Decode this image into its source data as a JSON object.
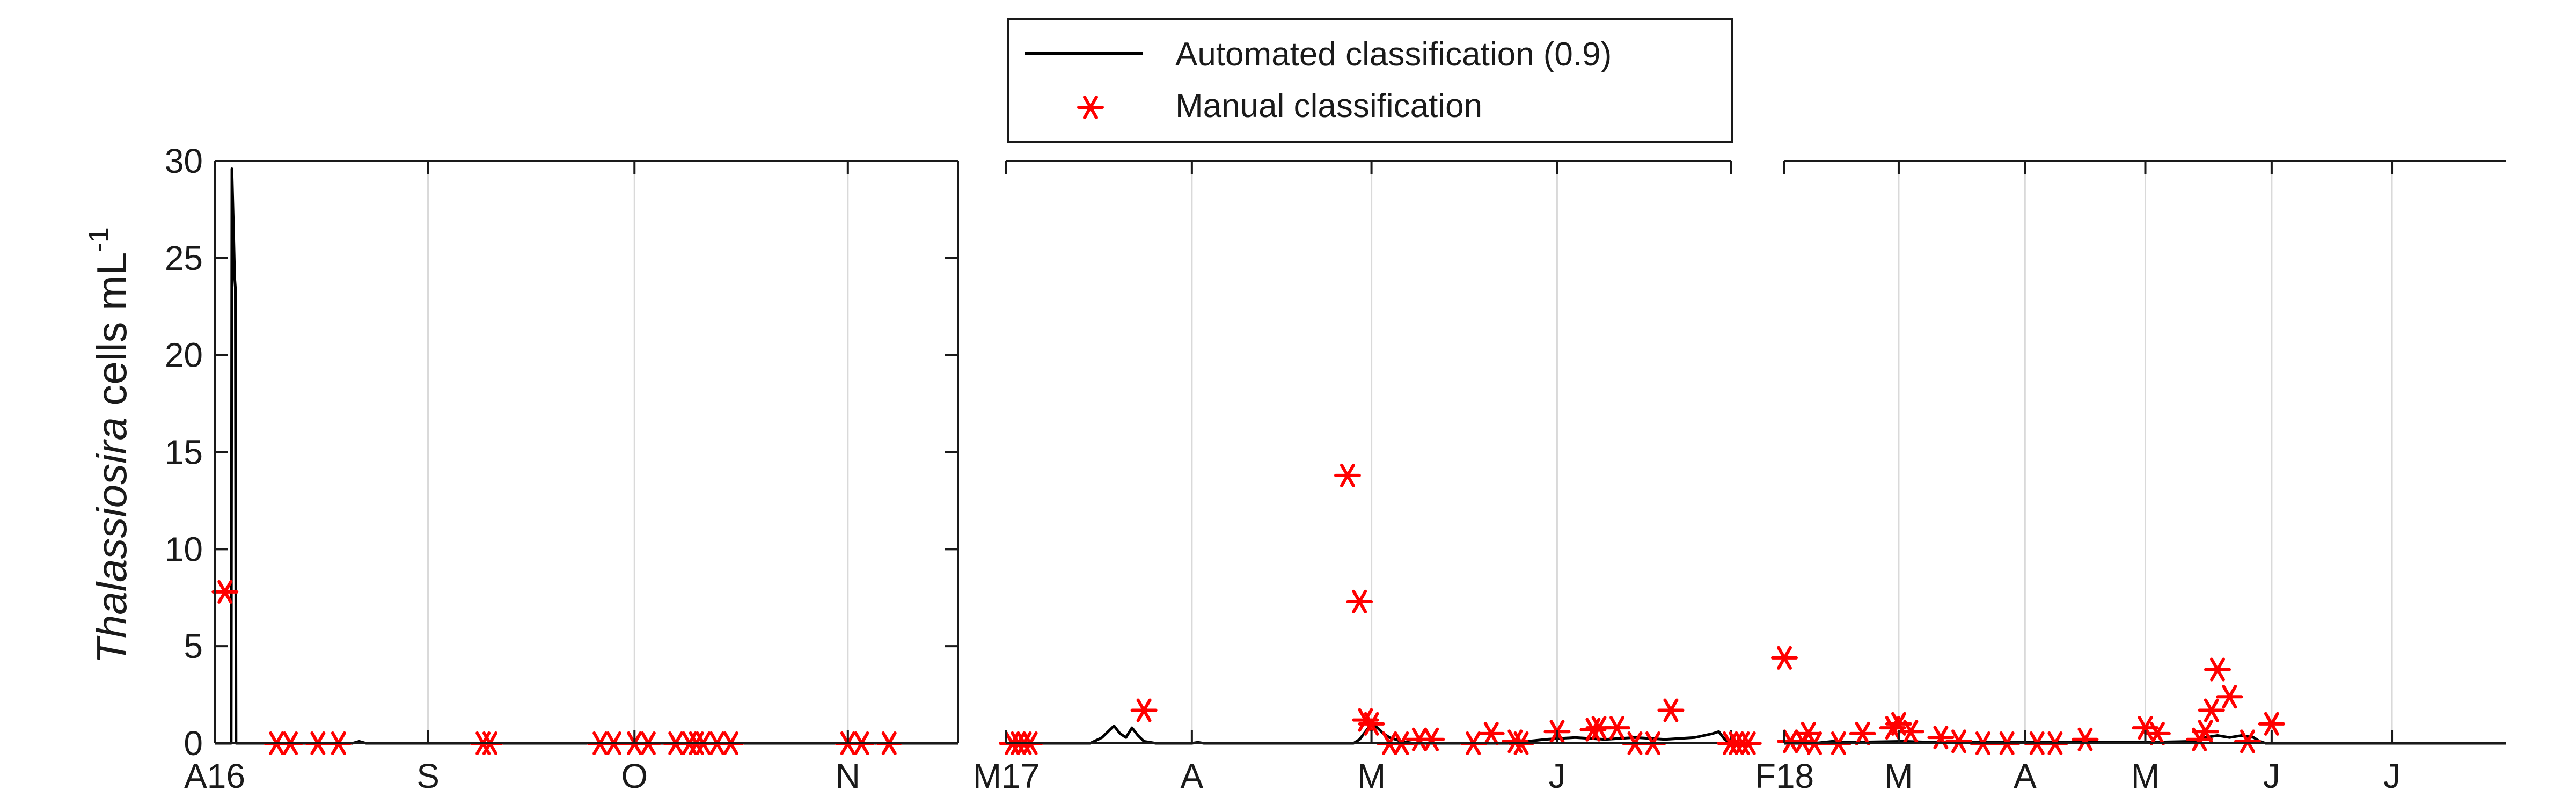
{
  "chart_data": {
    "type": "line",
    "ylabel": {
      "italic": "Thalassiosira",
      "rest": " cells mL",
      "sup": "-1"
    },
    "ylim": [
      0,
      30
    ],
    "yticks": [
      0,
      5,
      10,
      15,
      20,
      25,
      30
    ],
    "grid": true,
    "legend": {
      "position": "top-center",
      "entries": [
        {
          "label": "Automated classification (0.9)",
          "style": "line",
          "color": "#000000"
        },
        {
          "label": "Manual classification",
          "style": "asterisk",
          "color": "#ff0000"
        }
      ]
    },
    "colors": {
      "automated": "#000000",
      "manual": "#ff0000",
      "grid": "#d9d9d9"
    },
    "panels": [
      {
        "xlim": [
          0,
          108
        ],
        "xticks": [
          {
            "x": 0,
            "label": "A16"
          },
          {
            "x": 31,
            "label": "S"
          },
          {
            "x": 61,
            "label": "O"
          },
          {
            "x": 92,
            "label": "N"
          },
          {
            "x": 108,
            "label": ""
          }
        ],
        "automated": [
          [
            0,
            0
          ],
          [
            2.4,
            0
          ],
          [
            2.5,
            29.6
          ],
          [
            2.7,
            27
          ],
          [
            2.9,
            24
          ],
          [
            3.0,
            23.5
          ],
          [
            3.1,
            0
          ],
          [
            20,
            0
          ],
          [
            21,
            0.1
          ],
          [
            22,
            0
          ],
          [
            108,
            0
          ]
        ],
        "manual": [
          [
            1.5,
            7.8
          ],
          [
            9,
            0
          ],
          [
            11,
            0
          ],
          [
            15,
            0
          ],
          [
            18,
            0
          ],
          [
            39,
            0
          ],
          [
            40,
            0
          ],
          [
            56,
            0
          ],
          [
            58,
            0
          ],
          [
            61,
            0
          ],
          [
            63,
            0
          ],
          [
            67,
            0
          ],
          [
            69,
            0
          ],
          [
            70,
            0
          ],
          [
            71,
            0
          ],
          [
            73,
            0
          ],
          [
            75,
            0
          ],
          [
            92,
            0
          ],
          [
            94,
            0
          ],
          [
            98,
            0
          ]
        ]
      },
      {
        "xlim": [
          0,
          121
        ],
        "xticks": [
          {
            "x": 0,
            "label": "M17"
          },
          {
            "x": 31,
            "label": "A"
          },
          {
            "x": 61,
            "label": "M"
          },
          {
            "x": 92,
            "label": "J"
          },
          {
            "x": 121,
            "label": ""
          }
        ],
        "automated": [
          [
            0,
            0
          ],
          [
            14,
            0
          ],
          [
            15,
            0.15
          ],
          [
            16,
            0.3
          ],
          [
            17,
            0.6
          ],
          [
            18,
            0.9
          ],
          [
            19,
            0.5
          ],
          [
            20,
            0.3
          ],
          [
            21,
            0.8
          ],
          [
            22,
            0.4
          ],
          [
            23,
            0.1
          ],
          [
            25,
            0
          ],
          [
            31,
            0
          ],
          [
            32,
            0.05
          ],
          [
            33,
            0
          ],
          [
            58,
            0
          ],
          [
            59,
            0.2
          ],
          [
            60,
            0.6
          ],
          [
            61,
            1.0
          ],
          [
            62,
            0.8
          ],
          [
            63,
            0.5
          ],
          [
            64,
            0.3
          ],
          [
            65,
            0.2
          ],
          [
            66,
            0.1
          ],
          [
            68,
            0
          ],
          [
            85,
            0
          ],
          [
            87,
            0.1
          ],
          [
            90,
            0.2
          ],
          [
            95,
            0.3
          ],
          [
            100,
            0.2
          ],
          [
            105,
            0.3
          ],
          [
            110,
            0.2
          ],
          [
            115,
            0.3
          ],
          [
            118,
            0.5
          ],
          [
            119,
            0.6
          ],
          [
            120,
            0.2
          ],
          [
            121,
            0
          ]
        ],
        "manual": [
          [
            1,
            0
          ],
          [
            2,
            0
          ],
          [
            3,
            0
          ],
          [
            4,
            0
          ],
          [
            23,
            1.7
          ],
          [
            57,
            13.8
          ],
          [
            59,
            7.3
          ],
          [
            60,
            1.2
          ],
          [
            61,
            1.0
          ],
          [
            64,
            0
          ],
          [
            66,
            0
          ],
          [
            69,
            0.2
          ],
          [
            71,
            0.2
          ],
          [
            78,
            0
          ],
          [
            81,
            0.5
          ],
          [
            85,
            0.1
          ],
          [
            86,
            0
          ],
          [
            92,
            0.6
          ],
          [
            98,
            0.7
          ],
          [
            99,
            0.8
          ],
          [
            102,
            0.8
          ],
          [
            105,
            0
          ],
          [
            108,
            0
          ],
          [
            111,
            1.7
          ]
        ]
      },
      {
        "xlim": [
          0,
          120
        ],
        "xticks": [
          {
            "x": 0,
            "label": "F18"
          },
          {
            "x": 19,
            "label": "M"
          },
          {
            "x": 40,
            "label": "A"
          },
          {
            "x": 60,
            "label": "M"
          },
          {
            "x": 81,
            "label": "J"
          },
          {
            "x": 101,
            "label": "J"
          }
        ],
        "automated": [
          [
            0,
            0
          ],
          [
            5,
            0
          ],
          [
            8,
            0.1
          ],
          [
            10,
            0.05
          ],
          [
            20,
            0.1
          ],
          [
            25,
            0.05
          ],
          [
            40,
            0.05
          ],
          [
            60,
            0.05
          ],
          [
            68,
            0.1
          ],
          [
            70,
            0.3
          ],
          [
            72,
            0.4
          ],
          [
            74,
            0.3
          ],
          [
            76,
            0.4
          ],
          [
            78,
            0.3
          ],
          [
            79,
            0.1
          ],
          [
            80,
            0
          ],
          [
            120,
            0
          ]
        ],
        "manual": [
          [
            -9,
            0
          ],
          [
            -8,
            0
          ],
          [
            -7,
            0
          ],
          [
            -6,
            0
          ],
          [
            0,
            4.4
          ],
          [
            1,
            0.1
          ],
          [
            3,
            0.1
          ],
          [
            4,
            0.5
          ],
          [
            5,
            0
          ],
          [
            9,
            0
          ],
          [
            13,
            0.5
          ],
          [
            18,
            0.8
          ],
          [
            19,
            1.0
          ],
          [
            21,
            0.6
          ],
          [
            26,
            0.3
          ],
          [
            29,
            0.1
          ],
          [
            33,
            0
          ],
          [
            37,
            0
          ],
          [
            42,
            0
          ],
          [
            45,
            0
          ],
          [
            50,
            0.2
          ],
          [
            60,
            0.8
          ],
          [
            62,
            0.5
          ],
          [
            69,
            0.2
          ],
          [
            70,
            0.6
          ],
          [
            71,
            1.7
          ],
          [
            72,
            3.8
          ],
          [
            74,
            2.4
          ],
          [
            77,
            0.1
          ],
          [
            81,
            1.0
          ]
        ]
      }
    ]
  }
}
